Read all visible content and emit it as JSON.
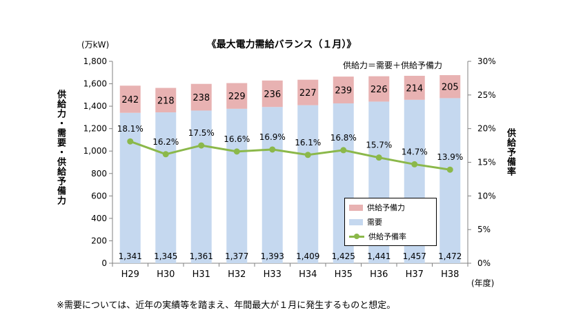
{
  "page": {
    "title": "《最大電力需給バランス（１月）》",
    "unit_left": "(万kW)",
    "unit_right": "(年度)",
    "formula": "供給力＝需要＋供給予備力",
    "left_axis_label": "供給力・需要・供給予備力",
    "right_axis_label": "供給予備率",
    "footnote": "※需要については、近年の実績等を踏まえ、年間最大が１月に発生するものと想定。"
  },
  "legend": {
    "reserve": "供給予備力",
    "demand": "需要",
    "rate": "供給予備率"
  },
  "colors": {
    "reserve": "#e8b2b2",
    "demand": "#c5d8ef",
    "rate": "#8bb84a",
    "axis": "#808080"
  },
  "chart_data": {
    "type": "bar",
    "stacked": true,
    "title": "《最大電力需給バランス（１月）》",
    "categories": [
      "H29",
      "H30",
      "H31",
      "H32",
      "H33",
      "H34",
      "H35",
      "H36",
      "H37",
      "H38"
    ],
    "series": [
      {
        "name": "需要",
        "axis": "left",
        "values": [
          1341,
          1345,
          1361,
          1377,
          1393,
          1409,
          1425,
          1441,
          1457,
          1472
        ],
        "labels": [
          "1,341",
          "1,345",
          "1,361",
          "1,377",
          "1,393",
          "1,409",
          "1,425",
          "1,441",
          "1,457",
          "1,472"
        ]
      },
      {
        "name": "供給予備力",
        "axis": "left",
        "values": [
          242,
          218,
          238,
          229,
          236,
          227,
          239,
          226,
          214,
          205
        ],
        "labels": [
          "242",
          "218",
          "238",
          "229",
          "236",
          "227",
          "239",
          "226",
          "214",
          "205"
        ]
      },
      {
        "name": "供給予備率",
        "type": "line",
        "axis": "right",
        "values": [
          18.1,
          16.2,
          17.5,
          16.6,
          16.9,
          16.1,
          16.8,
          15.7,
          14.7,
          13.9
        ],
        "labels": [
          "18.1%",
          "16.2%",
          "17.5%",
          "16.6%",
          "16.9%",
          "16.1%",
          "16.8%",
          "15.7%",
          "14.7%",
          "13.9%"
        ]
      }
    ],
    "y_left": {
      "label": "供給力・需要・供給予備力",
      "unit": "(万kW)",
      "range": [
        0,
        1800
      ],
      "ticks": [
        0,
        200,
        400,
        600,
        800,
        1000,
        1200,
        1400,
        1600,
        1800
      ],
      "tick_labels": [
        "0",
        "200",
        "400",
        "600",
        "800",
        "1,000",
        "1,200",
        "1,400",
        "1,600",
        "1,800"
      ]
    },
    "y_right": {
      "label": "供給予備率",
      "range": [
        0,
        30
      ],
      "ticks": [
        0,
        5,
        10,
        15,
        20,
        25,
        30
      ],
      "tick_labels": [
        "0%",
        "5%",
        "10%",
        "15%",
        "20%",
        "25%",
        "30%"
      ]
    },
    "xlabel": "(年度)",
    "grid": false,
    "legend_position": "lower-right"
  }
}
